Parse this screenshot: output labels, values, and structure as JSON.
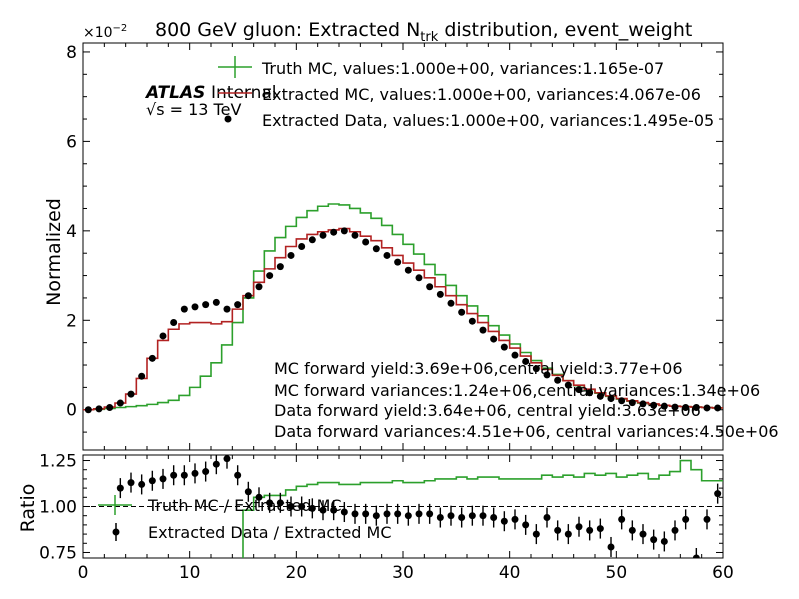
{
  "chart_data": [
    {
      "panel": "main",
      "type": "line",
      "title": "800 GeV gluon: Extracted N",
      "title_subscript": "trk",
      "title_suffix": " distribution, event_weight",
      "ylabel": "Normalized",
      "y_exponent_label": "×10",
      "y_exponent_value": "−2",
      "xlim": [
        0,
        60
      ],
      "ylim": [
        -0.9,
        8.2
      ],
      "y_scale_note": "values shown in units of 1e-2",
      "yticks": [
        0,
        2,
        4,
        6,
        8
      ],
      "yticklabels": [
        "0",
        "2",
        "4",
        "6",
        "8"
      ],
      "atlas_label": "ATLAS",
      "atlas_sublabel": "Internal",
      "energy_label_sqrt": "√s",
      "energy_label_rest": " = 13 TeV",
      "legend": [
        {
          "label": "Truth MC, values:1.000e+00, variances:1.165e-07",
          "color": "#2ca02c",
          "style": "step-errorbar"
        },
        {
          "label": "Extracted MC, values:1.000e+00, variances:4.067e-06",
          "color": "#b22222",
          "style": "step"
        },
        {
          "label": "Extracted Data, values:1.000e+00, variances:1.495e-05",
          "color": "#000000",
          "style": "marker"
        }
      ],
      "annotations": [
        "MC forward yield:3.69e+06,central yield:3.77e+06",
        "MC forward variances:1.24e+06,central variances:1.34e+06",
        "Data forward yield:3.64e+06, central yield:3.63e+06",
        "Data forward variances:4.51e+06, central variances:4.50e+06"
      ],
      "bin_edges": [
        0,
        1,
        2,
        3,
        4,
        5,
        6,
        7,
        8,
        9,
        10,
        11,
        12,
        13,
        14,
        15,
        16,
        17,
        18,
        19,
        20,
        21,
        22,
        23,
        24,
        25,
        26,
        27,
        28,
        29,
        30,
        31,
        32,
        33,
        34,
        35,
        36,
        37,
        38,
        39,
        40,
        41,
        42,
        43,
        44,
        45,
        46,
        47,
        48,
        49,
        50,
        51,
        52,
        53,
        54,
        55,
        56,
        57,
        58,
        59,
        60
      ],
      "series": [
        {
          "name": "Truth MC",
          "color": "#2ca02c",
          "values": [
            0.0,
            0.01,
            0.03,
            0.05,
            0.07,
            0.09,
            0.12,
            0.16,
            0.21,
            0.32,
            0.5,
            0.75,
            1.05,
            1.45,
            1.95,
            2.5,
            3.1,
            3.55,
            3.85,
            4.1,
            4.3,
            4.45,
            4.55,
            4.6,
            4.58,
            4.5,
            4.4,
            4.28,
            4.12,
            3.92,
            3.7,
            3.48,
            3.25,
            3.02,
            2.78,
            2.55,
            2.32,
            2.1,
            1.88,
            1.67,
            1.47,
            1.28,
            1.1,
            0.93,
            0.79,
            0.65,
            0.54,
            0.45,
            0.37,
            0.3,
            0.24,
            0.19,
            0.15,
            0.12,
            0.1,
            0.08,
            0.07,
            0.06,
            0.05,
            0.04
          ]
        },
        {
          "name": "Extracted MC",
          "color": "#b22222",
          "values": [
            0.0,
            0.02,
            0.06,
            0.15,
            0.35,
            0.7,
            1.15,
            1.55,
            1.8,
            1.92,
            1.95,
            1.95,
            1.92,
            1.97,
            2.25,
            2.55,
            2.85,
            3.15,
            3.4,
            3.65,
            3.82,
            3.92,
            3.98,
            4.02,
            4.05,
            3.98,
            3.88,
            3.78,
            3.62,
            3.45,
            3.28,
            3.12,
            2.95,
            2.75,
            2.55,
            2.35,
            2.15,
            1.95,
            1.75,
            1.55,
            1.38,
            1.2,
            1.05,
            0.9,
            0.77,
            0.65,
            0.55,
            0.46,
            0.38,
            0.31,
            0.25,
            0.2,
            0.16,
            0.13,
            0.1,
            0.08,
            0.07,
            0.06,
            0.05,
            0.04
          ]
        },
        {
          "name": "Extracted Data",
          "color": "#000000",
          "values": [
            0.0,
            0.02,
            0.05,
            0.15,
            0.35,
            0.75,
            1.15,
            1.65,
            1.95,
            2.25,
            2.3,
            2.35,
            2.4,
            2.25,
            2.35,
            2.55,
            2.75,
            3.0,
            3.2,
            3.45,
            3.65,
            3.8,
            3.9,
            3.97,
            4.0,
            3.9,
            3.75,
            3.6,
            3.45,
            3.3,
            3.12,
            2.95,
            2.75,
            2.58,
            2.38,
            2.18,
            1.98,
            1.78,
            1.58,
            1.4,
            1.22,
            1.08,
            0.92,
            0.78,
            0.66,
            0.55,
            0.45,
            0.38,
            0.3,
            0.25,
            0.2,
            0.16,
            0.13,
            0.1,
            0.08,
            0.06,
            0.05,
            0.05,
            0.04,
            0.04
          ]
        }
      ]
    },
    {
      "panel": "ratio",
      "type": "line",
      "ylabel": "Ratio",
      "xlim": [
        0,
        60
      ],
      "ylim": [
        0.72,
        1.28
      ],
      "xticks": [
        0,
        10,
        20,
        30,
        40,
        50,
        60
      ],
      "xticklabels": [
        "0",
        "10",
        "20",
        "30",
        "40",
        "50",
        "60"
      ],
      "yticks": [
        0.75,
        1.0,
        1.25
      ],
      "yticklabels": [
        "0.75",
        "1.00",
        "1.25"
      ],
      "reference_line": 1.0,
      "legend": [
        {
          "label": "Truth MC / Extracted MC",
          "color": "#2ca02c",
          "style": "step-errorbar"
        },
        {
          "label": "Extracted Data / Extracted MC",
          "color": "#000000",
          "style": "marker"
        }
      ],
      "series": [
        {
          "name": "Truth MC / Extracted MC",
          "color": "#2ca02c",
          "values": [
            null,
            null,
            null,
            null,
            null,
            null,
            null,
            null,
            null,
            null,
            null,
            null,
            null,
            0.4,
            0.68,
            0.98,
            1.05,
            1.06,
            1.06,
            1.09,
            1.11,
            1.12,
            1.13,
            1.13,
            1.12,
            1.12,
            1.13,
            1.13,
            1.13,
            1.14,
            1.13,
            1.13,
            1.14,
            1.15,
            1.15,
            1.16,
            1.15,
            1.16,
            1.16,
            1.15,
            1.15,
            1.15,
            1.15,
            1.17,
            1.16,
            1.17,
            1.16,
            1.18,
            1.17,
            1.18,
            1.16,
            1.17,
            1.18,
            1.15,
            1.17,
            1.19,
            1.25,
            1.2,
            1.14,
            1.14
          ]
        },
        {
          "name": "Extracted Data / Extracted MC",
          "color": "#000000",
          "values": [
            null,
            null,
            null,
            1.1,
            1.13,
            1.12,
            1.14,
            1.15,
            1.17,
            1.17,
            1.18,
            1.19,
            1.23,
            1.26,
            1.17,
            1.08,
            1.05,
            1.02,
            1.02,
            1.0,
            1.0,
            0.99,
            0.98,
            0.98,
            0.97,
            0.96,
            0.96,
            0.95,
            0.96,
            0.96,
            0.95,
            0.96,
            0.96,
            0.94,
            0.95,
            0.94,
            0.95,
            0.95,
            0.94,
            0.92,
            0.93,
            0.9,
            0.85,
            0.94,
            0.87,
            0.85,
            0.89,
            0.87,
            0.88,
            0.78,
            0.93,
            0.87,
            0.85,
            0.82,
            0.81,
            0.87,
            0.93,
            0.72,
            0.93,
            1.07
          ]
        }
      ]
    }
  ]
}
